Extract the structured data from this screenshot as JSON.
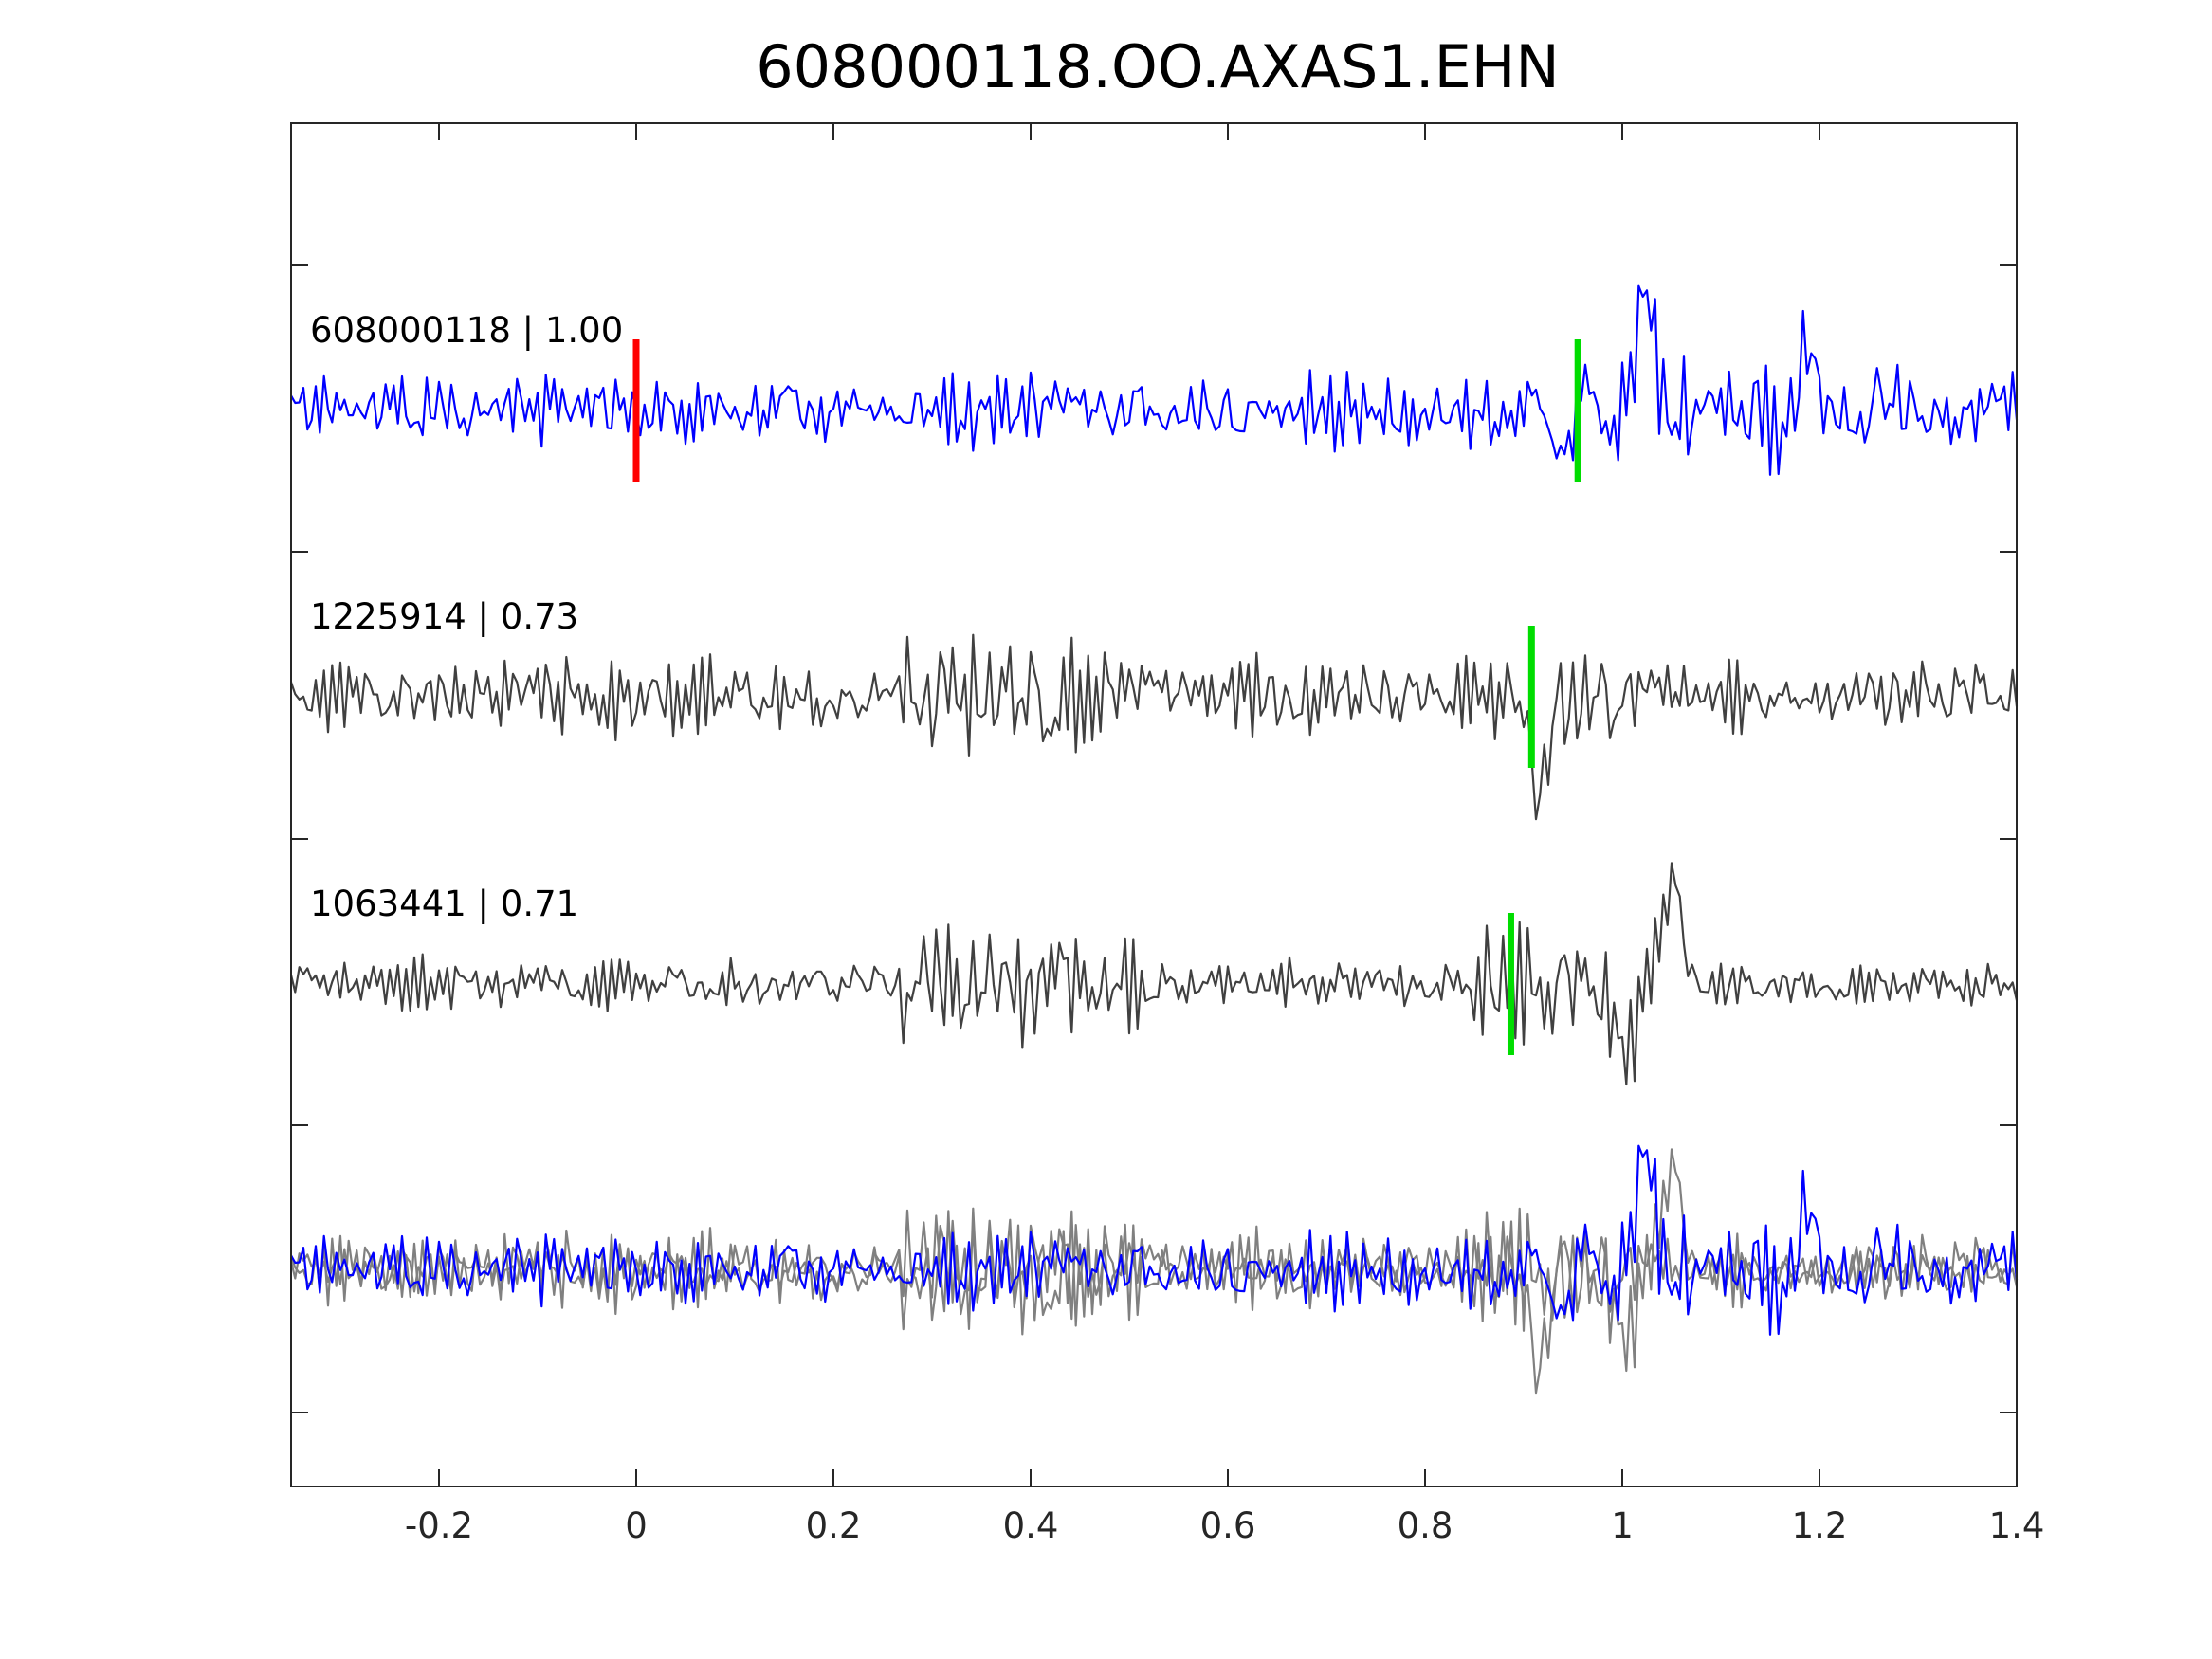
{
  "chart_data": {
    "type": "line",
    "title": "608000118.OO.AXAS1.EHN",
    "xlabel": "",
    "ylabel": "",
    "xlim": [
      -0.35,
      1.4
    ],
    "xticks": [
      -0.2,
      0,
      0.2,
      0.4,
      0.6,
      0.8,
      1.0,
      1.2,
      1.4
    ],
    "xtick_labels": [
      "-0.2",
      "0",
      "0.2",
      "0.4",
      "0.6",
      "0.8",
      "1",
      "1.2",
      "1.4"
    ],
    "grid": false,
    "traces": [
      {
        "label": "608000118 | 1.00",
        "color": "#0000ff",
        "markers": [
          {
            "x": 0.0,
            "color": "#ff0000"
          },
          {
            "x": 0.955,
            "color": "#00dd00"
          }
        ]
      },
      {
        "label": "1225914 | 0.73",
        "color": "#404040",
        "markers": [
          {
            "x": 0.908,
            "color": "#00dd00"
          }
        ]
      },
      {
        "label": "1063441 | 0.71",
        "color": "#404040",
        "markers": [
          {
            "x": 0.887,
            "color": "#00dd00"
          }
        ]
      }
    ],
    "overlay": {
      "description_series": [
        "608000118 | 1.00",
        "1225914 | 0.73",
        "1063441 | 0.71"
      ],
      "colors": [
        "#0000ff",
        "#808080",
        "#808080"
      ]
    }
  }
}
